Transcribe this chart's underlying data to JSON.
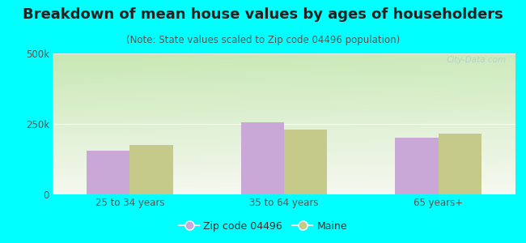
{
  "title": "Breakdown of mean house values by ages of householders",
  "subtitle": "(Note: State values scaled to Zip code 04496 population)",
  "categories": [
    "25 to 34 years",
    "35 to 64 years",
    "65 years+"
  ],
  "zip_values": [
    155000,
    255000,
    200000
  ],
  "maine_values": [
    175000,
    230000,
    215000
  ],
  "ylim": [
    0,
    500000
  ],
  "yticks": [
    0,
    250000,
    500000
  ],
  "ytick_labels": [
    "0",
    "250k",
    "500k"
  ],
  "bar_color_zip": "#c9a8d8",
  "bar_color_maine": "#c5c98a",
  "bg_topleft": "#c8e8b0",
  "bg_bottomright": "#f5f5f5",
  "outer_bg": "#00ffff",
  "chart_bg": "#ffffff",
  "legend_zip_label": "Zip code 04496",
  "legend_maine_label": "Maine",
  "watermark": "City-Data.com",
  "title_fontsize": 13,
  "subtitle_fontsize": 8.5,
  "bar_width": 0.28,
  "tick_color": "#555555",
  "title_color": "#222222",
  "subtitle_color": "#555555"
}
